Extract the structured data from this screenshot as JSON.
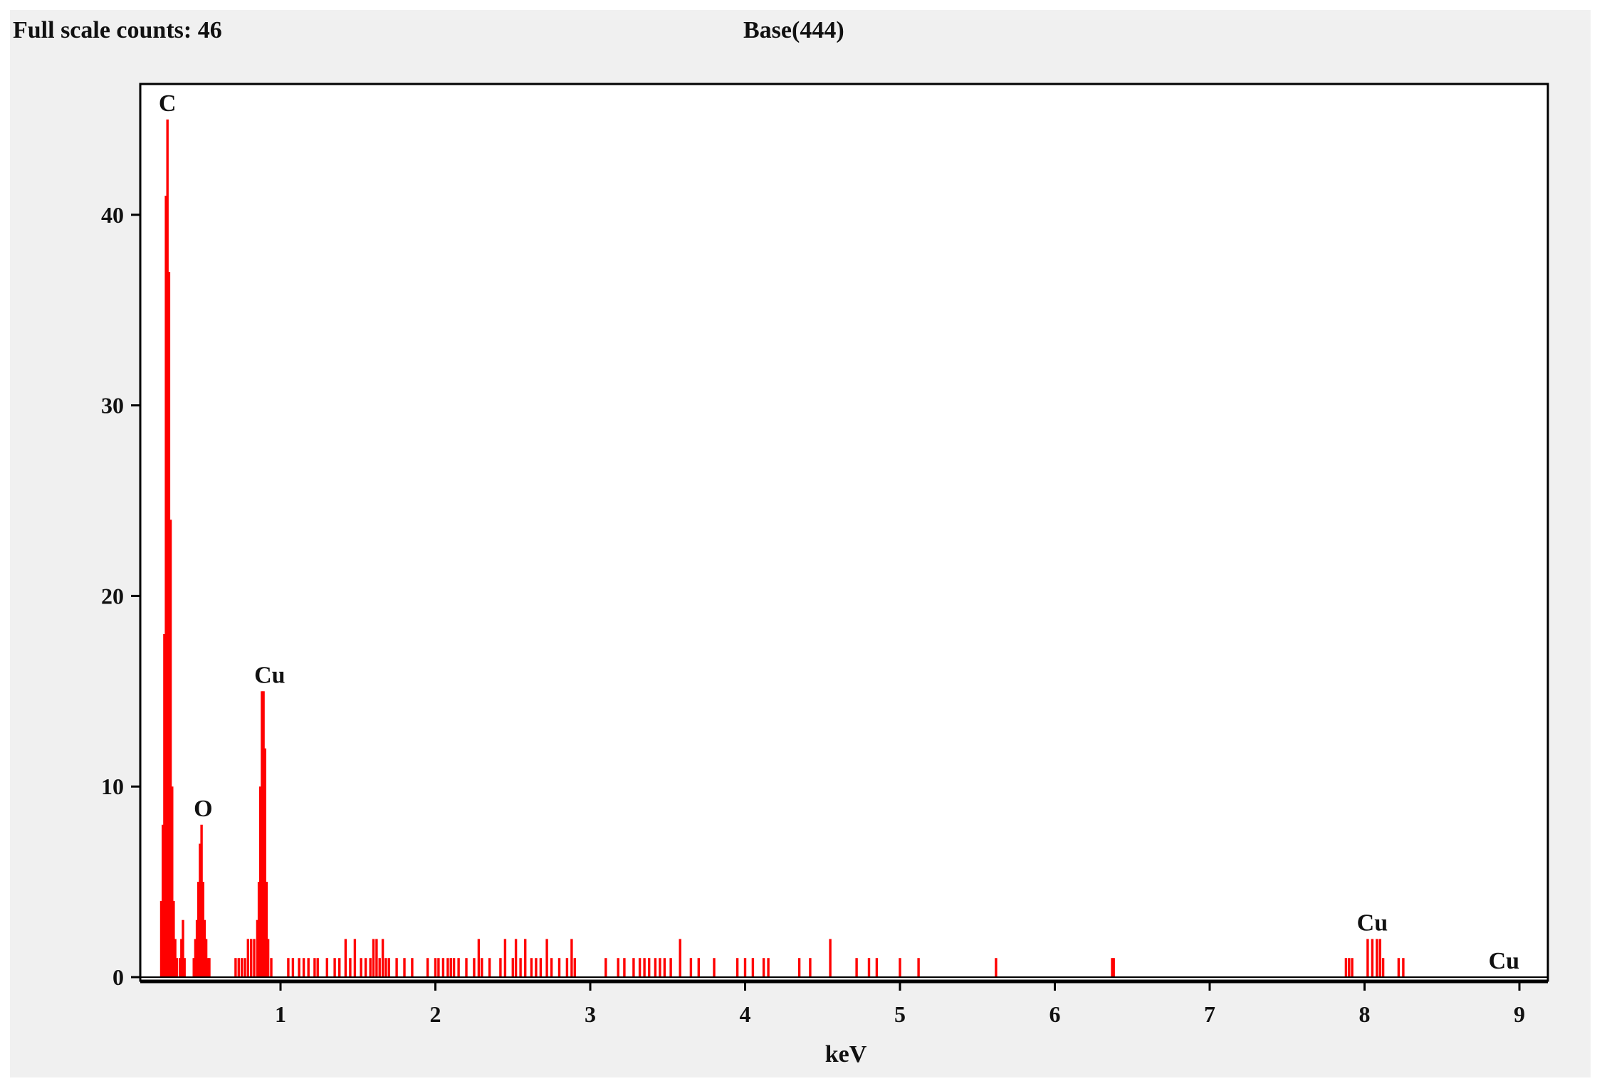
{
  "header": {
    "full_scale": "Full scale counts: 46",
    "base": "Base(444)"
  },
  "colors": {
    "spectrum": "#ff0000",
    "frame": "#000000",
    "background": "#f0f0f0"
  },
  "chart_data": {
    "type": "bar",
    "title": "",
    "xlabel": "keV",
    "ylabel": "",
    "xlim": [
      0.1,
      9.2
    ],
    "ylim": [
      0,
      46
    ],
    "x_ticks": [
      1,
      2,
      3,
      4,
      5,
      6,
      7,
      8,
      9
    ],
    "y_ticks": [
      0,
      10,
      20,
      30,
      40
    ],
    "grid": false,
    "legend": "none",
    "bin_width_kev": 0.01,
    "series": [
      {
        "values": [
          [
            0.23,
            4
          ],
          [
            0.24,
            8
          ],
          [
            0.25,
            18
          ],
          [
            0.26,
            41
          ],
          [
            0.27,
            45
          ],
          [
            0.28,
            37
          ],
          [
            0.29,
            24
          ],
          [
            0.3,
            10
          ],
          [
            0.31,
            4
          ],
          [
            0.32,
            2
          ],
          [
            0.33,
            1
          ],
          [
            0.35,
            1
          ],
          [
            0.36,
            2
          ],
          [
            0.37,
            3
          ],
          [
            0.38,
            1
          ],
          [
            0.44,
            1
          ],
          [
            0.45,
            2
          ],
          [
            0.46,
            3
          ],
          [
            0.47,
            5
          ],
          [
            0.48,
            7
          ],
          [
            0.49,
            8
          ],
          [
            0.5,
            5
          ],
          [
            0.51,
            3
          ],
          [
            0.52,
            2
          ],
          [
            0.53,
            1
          ],
          [
            0.54,
            1
          ],
          [
            0.71,
            1
          ],
          [
            0.73,
            1
          ],
          [
            0.75,
            1
          ],
          [
            0.77,
            1
          ],
          [
            0.79,
            2
          ],
          [
            0.81,
            2
          ],
          [
            0.83,
            2
          ],
          [
            0.85,
            3
          ],
          [
            0.86,
            5
          ],
          [
            0.87,
            10
          ],
          [
            0.88,
            15
          ],
          [
            0.89,
            15
          ],
          [
            0.9,
            12
          ],
          [
            0.91,
            5
          ],
          [
            0.92,
            2
          ],
          [
            0.94,
            1
          ],
          [
            1.05,
            1
          ],
          [
            1.08,
            1
          ],
          [
            1.12,
            1
          ],
          [
            1.15,
            1
          ],
          [
            1.18,
            1
          ],
          [
            1.22,
            1
          ],
          [
            1.24,
            1
          ],
          [
            1.3,
            1
          ],
          [
            1.35,
            1
          ],
          [
            1.38,
            1
          ],
          [
            1.42,
            2
          ],
          [
            1.45,
            1
          ],
          [
            1.48,
            2
          ],
          [
            1.52,
            1
          ],
          [
            1.55,
            1
          ],
          [
            1.58,
            1
          ],
          [
            1.6,
            2
          ],
          [
            1.62,
            2
          ],
          [
            1.64,
            1
          ],
          [
            1.66,
            2
          ],
          [
            1.68,
            1
          ],
          [
            1.7,
            1
          ],
          [
            1.75,
            1
          ],
          [
            1.8,
            1
          ],
          [
            1.85,
            1
          ],
          [
            1.95,
            1
          ],
          [
            2.0,
            1
          ],
          [
            2.02,
            1
          ],
          [
            2.05,
            1
          ],
          [
            2.08,
            1
          ],
          [
            2.1,
            1
          ],
          [
            2.12,
            1
          ],
          [
            2.15,
            1
          ],
          [
            2.2,
            1
          ],
          [
            2.25,
            1
          ],
          [
            2.28,
            2
          ],
          [
            2.3,
            1
          ],
          [
            2.35,
            1
          ],
          [
            2.42,
            1
          ],
          [
            2.45,
            2
          ],
          [
            2.5,
            1
          ],
          [
            2.52,
            2
          ],
          [
            2.55,
            1
          ],
          [
            2.58,
            2
          ],
          [
            2.62,
            1
          ],
          [
            2.65,
            1
          ],
          [
            2.68,
            1
          ],
          [
            2.72,
            2
          ],
          [
            2.75,
            1
          ],
          [
            2.8,
            1
          ],
          [
            2.85,
            1
          ],
          [
            2.88,
            2
          ],
          [
            2.9,
            1
          ],
          [
            3.1,
            1
          ],
          [
            3.18,
            1
          ],
          [
            3.22,
            1
          ],
          [
            3.28,
            1
          ],
          [
            3.32,
            1
          ],
          [
            3.35,
            1
          ],
          [
            3.38,
            1
          ],
          [
            3.42,
            1
          ],
          [
            3.45,
            1
          ],
          [
            3.48,
            1
          ],
          [
            3.52,
            1
          ],
          [
            3.58,
            2
          ],
          [
            3.65,
            1
          ],
          [
            3.7,
            1
          ],
          [
            3.8,
            1
          ],
          [
            3.95,
            1
          ],
          [
            4.0,
            1
          ],
          [
            4.05,
            1
          ],
          [
            4.12,
            1
          ],
          [
            4.15,
            1
          ],
          [
            4.35,
            1
          ],
          [
            4.42,
            1
          ],
          [
            4.55,
            2
          ],
          [
            4.72,
            1
          ],
          [
            4.8,
            1
          ],
          [
            4.85,
            1
          ],
          [
            5.0,
            1
          ],
          [
            5.12,
            1
          ],
          [
            5.62,
            1
          ],
          [
            6.37,
            1
          ],
          [
            6.38,
            1
          ],
          [
            7.88,
            1
          ],
          [
            7.9,
            1
          ],
          [
            7.92,
            1
          ],
          [
            8.02,
            2
          ],
          [
            8.05,
            2
          ],
          [
            8.08,
            2
          ],
          [
            8.1,
            2
          ],
          [
            8.12,
            1
          ],
          [
            8.22,
            1
          ],
          [
            8.25,
            1
          ]
        ]
      }
    ],
    "annotations": [
      {
        "label": "C",
        "x": 0.27,
        "y": 45
      },
      {
        "label": "O",
        "x": 0.5,
        "y": 8
      },
      {
        "label": "Cu",
        "x": 0.93,
        "y": 15
      },
      {
        "label": "Cu",
        "x": 8.05,
        "y": 2
      },
      {
        "label": "Cu",
        "x": 8.9,
        "y": 0
      }
    ]
  }
}
